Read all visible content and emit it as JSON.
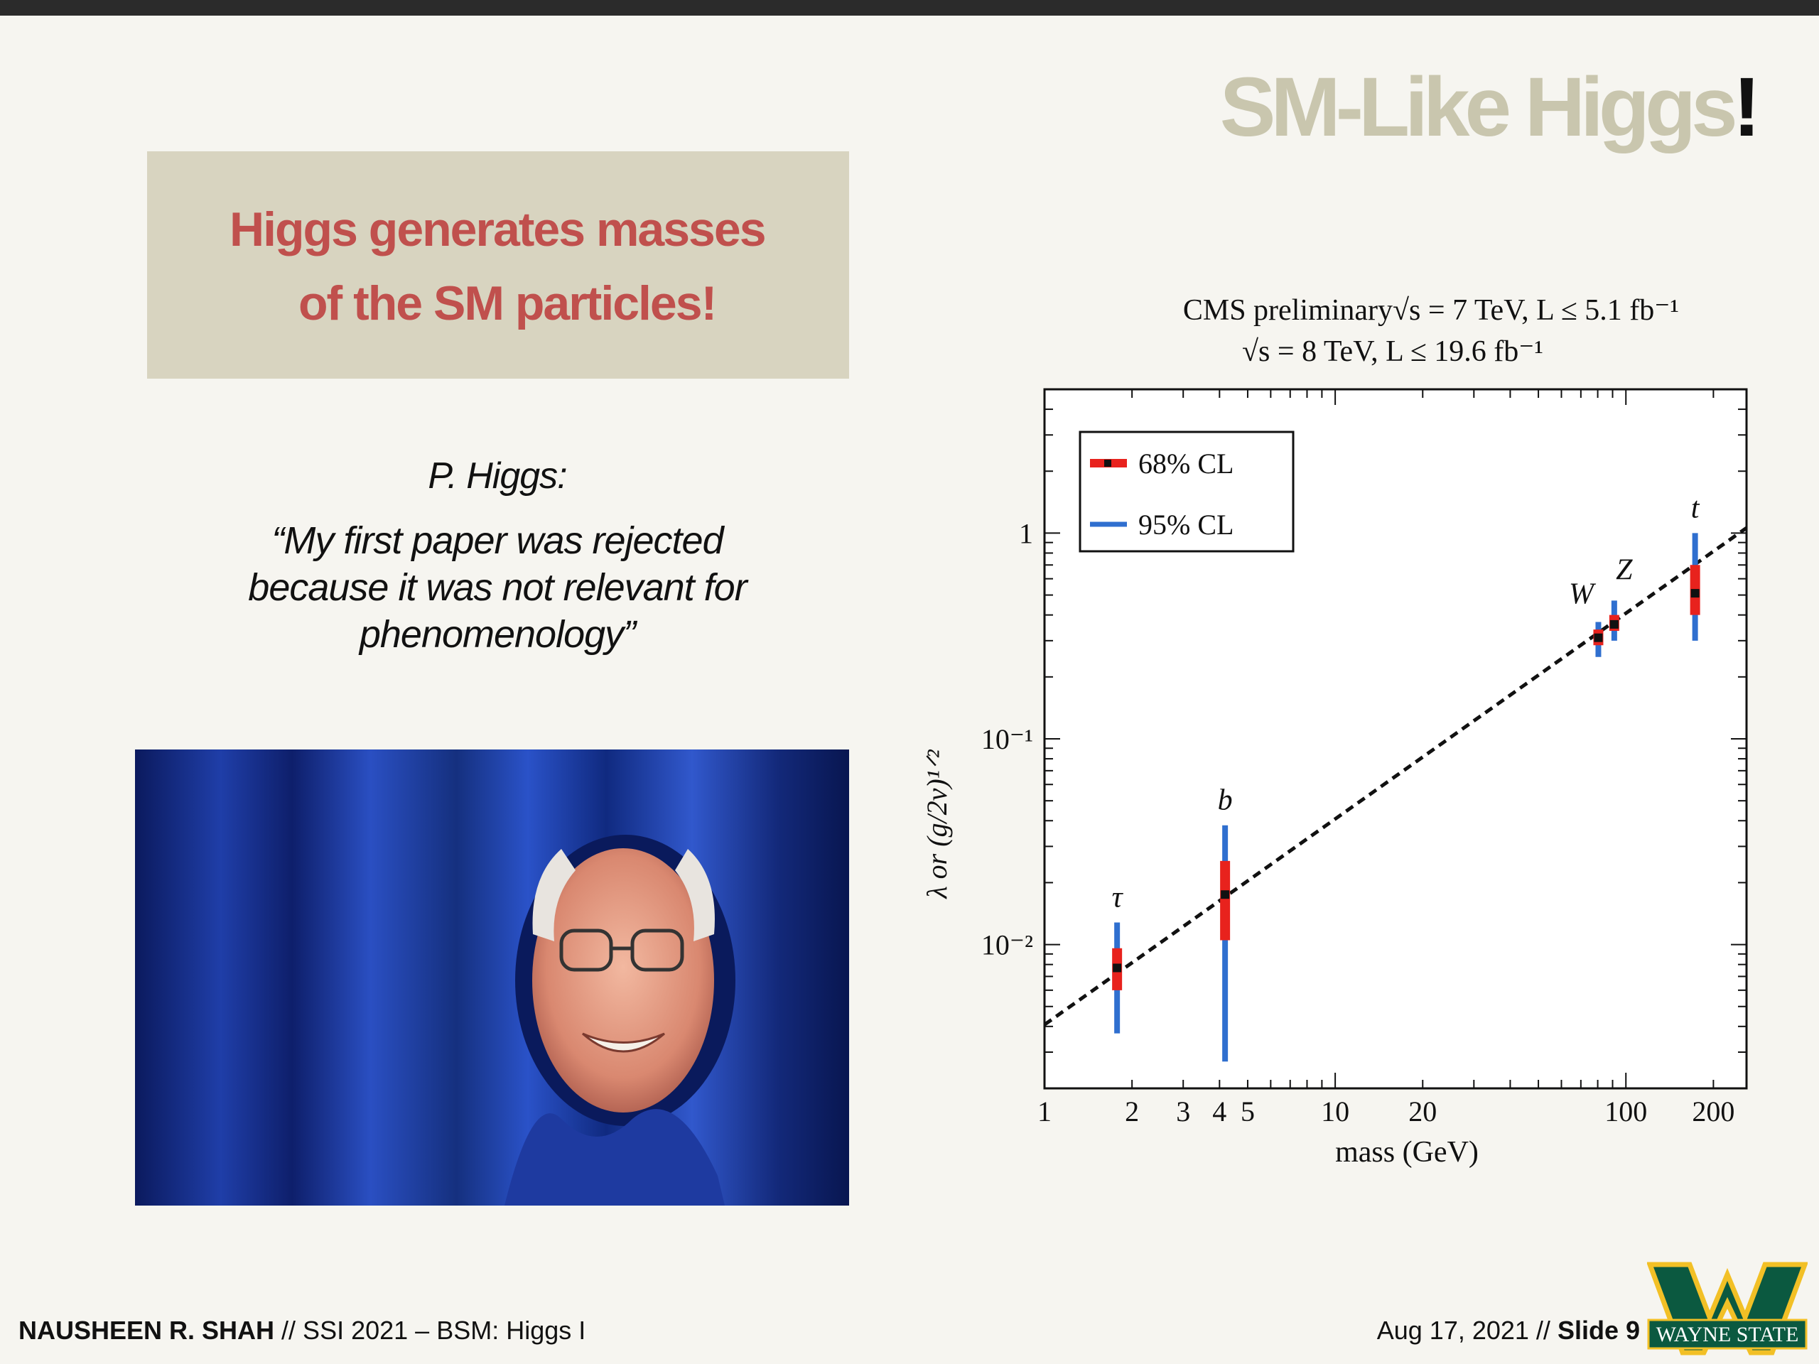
{
  "slide": {
    "title": "SM-Like Higgs",
    "title_bang": "!",
    "callout_line1": "Higgs generates masses",
    "callout_line2": "of the SM particles!",
    "quote_author": "P. Higgs:",
    "quote_text": "“My first paper was rejected because it was not relevant for phenomenology”",
    "photo_alt": "Peter Higgs peeking through blue curtains"
  },
  "footer": {
    "author": "NAUSHEEN R. SHAH",
    "event": " // SSI 2021 – BSM: Higgs I",
    "date": "Aug 17, 2021 // ",
    "slide": "Slide 9",
    "logo_text": "WAYNE STATE"
  },
  "colors": {
    "title": "#c9c6ae",
    "callout_bg": "#d8d4c0",
    "callout_text": "#c0504d",
    "cl68": "#e8221d",
    "cl95": "#2f6fcf",
    "logo_green": "#0b5940",
    "logo_gold": "#f2c026"
  },
  "chart_data": {
    "type": "scatter",
    "title_line1_prefix": "CMS preliminary ",
    "title_line1": "√s = 7 TeV, L ≤ 5.1 fb⁻¹",
    "title_line2": "√s = 8 TeV, L ≤ 19.6 fb⁻¹",
    "xlabel": "mass (GeV)",
    "ylabel": "λ or (g/2v)¹ᐟ²",
    "xscale": "log",
    "yscale": "log",
    "xlim": [
      1,
      260
    ],
    "ylim": [
      0.002,
      5
    ],
    "x_ticks": [
      {
        "value": 1,
        "label": "1"
      },
      {
        "value": 2,
        "label": "2"
      },
      {
        "value": 3,
        "label": "3"
      },
      {
        "value": 4,
        "label": "4"
      },
      {
        "value": 5,
        "label": "5"
      },
      {
        "value": 10,
        "label": "10"
      },
      {
        "value": 20,
        "label": "20"
      },
      {
        "value": 100,
        "label": "100"
      },
      {
        "value": 200,
        "label": "200"
      }
    ],
    "y_ticks": [
      {
        "value": 1,
        "label": "1"
      },
      {
        "value": 0.1,
        "label": "10⁻¹"
      },
      {
        "value": 0.01,
        "label": "10⁻²"
      }
    ],
    "legend": {
      "position": "top-left",
      "entries": [
        {
          "label": "68% CL",
          "color": "#e8221d"
        },
        {
          "label": "95% CL",
          "color": "#2f6fcf"
        }
      ]
    },
    "points": [
      {
        "name": "τ",
        "x": 1.777,
        "y": 0.0077,
        "cl68": [
          0.006,
          0.0096
        ],
        "cl95": [
          0.0037,
          0.0128
        ]
      },
      {
        "name": "b",
        "x": 4.18,
        "y": 0.0175,
        "cl68": [
          0.0105,
          0.0255
        ],
        "cl95": [
          0.0027,
          0.038
        ]
      },
      {
        "name": "W",
        "x": 80.4,
        "y": 0.31,
        "cl68": [
          0.285,
          0.34
        ],
        "cl95": [
          0.25,
          0.37
        ]
      },
      {
        "name": "Z",
        "x": 91.2,
        "y": 0.36,
        "cl68": [
          0.335,
          0.4
        ],
        "cl95": [
          0.3,
          0.47
        ]
      },
      {
        "name": "t",
        "x": 173,
        "y": 0.51,
        "cl68": [
          0.4,
          0.7
        ],
        "cl95": [
          0.3,
          1.0
        ]
      }
    ],
    "sm_line": {
      "style": "dashed",
      "x": [
        1,
        260
      ],
      "y": [
        0.00408,
        1.06
      ]
    }
  }
}
